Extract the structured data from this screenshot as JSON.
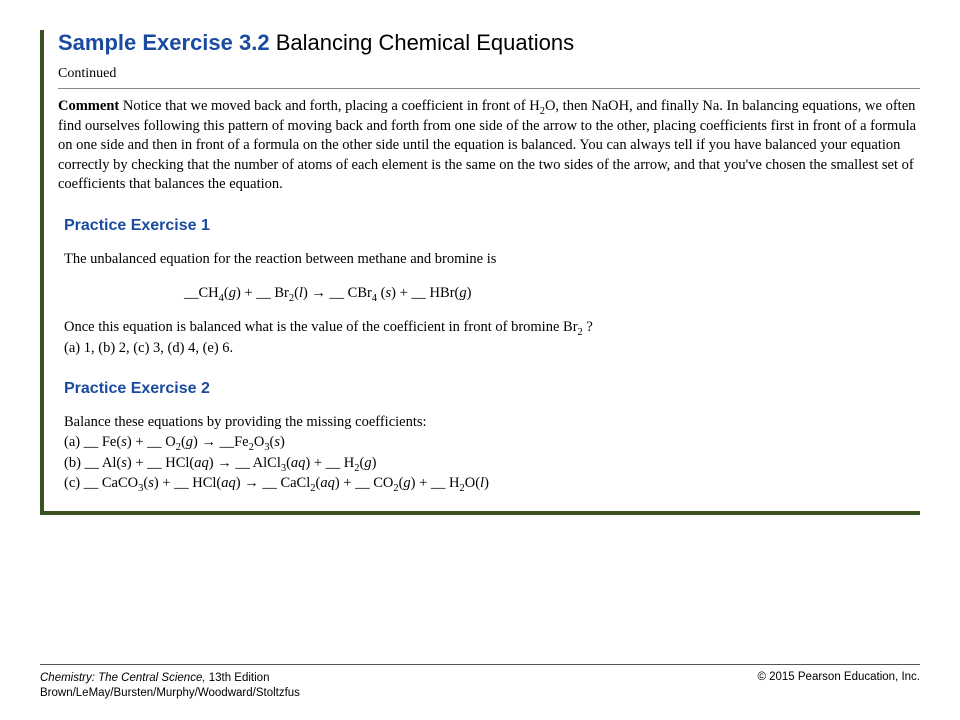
{
  "colors": {
    "accent_border": "#3b5323",
    "heading_blue": "#1a4ba0",
    "text": "#000000",
    "rule": "#888888",
    "background": "#ffffff"
  },
  "typography": {
    "heading_family": "Arial, Helvetica, sans-serif",
    "body_family": "Georgia, 'Times New Roman', serif",
    "title_size_pt": 16,
    "body_size_pt": 11
  },
  "title": {
    "prefix": "Sample Exercise 3.2 ",
    "main": "Balancing Chemical Equations"
  },
  "continued_label": "Continued",
  "comment": {
    "label": "Comment ",
    "text_pre": "Notice that we moved back and forth, placing a coefficient in front of H",
    "h2o_sub": "2",
    "text_post": "O, then NaOH, and finally Na. In balancing equations, we often find ourselves following this pattern of moving back and forth from one side of the arrow to the other, placing coefficients first in front of a formula on one side and then in front of a formula on the other side until the equation is balanced. You can always tell if you have balanced your equation correctly by checking that the number of atoms of each element is the same on the two sides of the arrow, and that you've chosen the smallest set of coefficients that balances the equation."
  },
  "practice1": {
    "heading": "Practice Exercise 1",
    "intro": "The unbalanced equation for the reaction between methane and bromine is",
    "equation": {
      "p1": "__CH",
      "s1": "4",
      "p2": "(",
      "g1": "g",
      "p3": ") + __ Br",
      "s2": "2",
      "p4": "(",
      "l1": "l",
      "p5": ") → __ CBr",
      "s3": "4",
      "p6": " (",
      "s3b": "s",
      "p7": ") + __ HBr(",
      "g2": "g",
      "p8": ")"
    },
    "q_pre": "Once this equation is balanced what is the value of the coefficient in front of bromine Br",
    "q_sub": "2",
    "q_post": " ?",
    "choices": {
      "a_lbl": "a",
      "a_val": ") 1, (",
      "b_lbl": "b",
      "b_val": ") 2, (",
      "c_lbl": "c",
      "c_val": ") 3, (",
      "d_lbl": "d",
      "d_val": ") 4, (",
      "e_lbl": "e",
      "e_val": ") 6."
    }
  },
  "practice2": {
    "heading": "Practice Exercise 2",
    "intro": "Balance these equations by providing the missing coefficients:",
    "a": {
      "lbl": "a",
      "p1": ") __ Fe(",
      "s1": "s",
      "p2": ") + __ O",
      "sub1": "2",
      "p3": "(",
      "g1": "g",
      "p4": ") → __Fe",
      "sub2": "2",
      "p5": "O",
      "sub3": "3",
      "p6": "(",
      "s2": "s",
      "p7": ")"
    },
    "b": {
      "lbl": "b",
      "p1": ") __ Al(",
      "s1": "s",
      "p2": ") + __ HCl(",
      "aq1": "aq",
      "p3": ") → __ AlCl",
      "sub1": "3",
      "p4": "(",
      "aq2": "aq",
      "p5": ") + __ H",
      "sub2": "2",
      "p6": "(",
      "g1": "g",
      "p7": ")"
    },
    "c": {
      "lbl": "c",
      "p1": ") __ CaCO",
      "sub1": "3",
      "p2": "(",
      "s1": "s",
      "p3": ") + __ HCl(",
      "aq1": "aq",
      "p4": ") → __ CaCl",
      "sub2": "2",
      "p5": "(",
      "aq2": "aq",
      "p6": ") + __ CO",
      "sub3": "2",
      "p7": "(",
      "g1": "g",
      "p8": ") + __ H",
      "sub4": "2",
      "p9": "O(",
      "l1": "l",
      "p10": ")"
    }
  },
  "footer": {
    "book_title": "Chemistry: The Central Science, ",
    "edition": "13th Edition",
    "authors": "Brown/LeMay/Bursten/Murphy/Woodward/Stoltzfus",
    "copyright": "© 2015 Pearson Education, Inc."
  }
}
